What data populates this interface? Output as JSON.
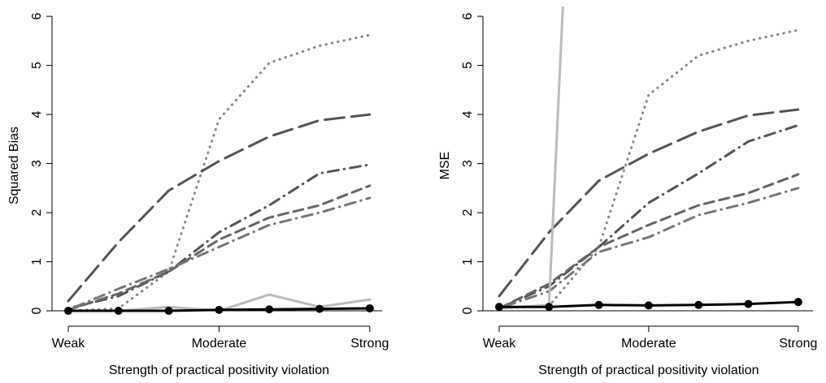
{
  "chart_data": [
    {
      "type": "line",
      "ylabel": "Squared Bias",
      "xlabel": "Strength of practical positivity violation",
      "categories": [
        "Weak",
        null,
        null,
        "Moderate",
        null,
        null,
        "Strong"
      ],
      "ylim": [
        -0.28,
        6.2
      ],
      "yticks": [
        0,
        1,
        2,
        3,
        4,
        5,
        6
      ],
      "hline": 0,
      "series": [
        {
          "color": "#888888",
          "dash": "dot",
          "values": [
            0,
            0.05,
            0.8,
            3.9,
            5.05,
            5.4,
            5.62
          ]
        },
        {
          "color": "#555555",
          "dash": "longdash",
          "values": [
            0.2,
            1.4,
            2.45,
            3.05,
            3.55,
            3.88,
            4.0
          ]
        },
        {
          "color": "#555555",
          "dash": "dotdash",
          "values": [
            0.05,
            0.3,
            0.8,
            1.6,
            2.15,
            2.8,
            2.98
          ]
        },
        {
          "color": "#666666",
          "dash": "dash",
          "values": [
            0.02,
            0.35,
            0.8,
            1.45,
            1.9,
            2.15,
            2.55
          ]
        },
        {
          "color": "#777777",
          "dash": "dotdash",
          "values": [
            0.02,
            0.45,
            0.85,
            1.3,
            1.75,
            2.0,
            2.3
          ]
        },
        {
          "color": "#bbbbbb",
          "dash": "solid",
          "values": [
            0,
            0,
            0.08,
            0,
            0.33,
            0.08,
            0.23
          ]
        },
        {
          "color": "#000000",
          "dash": "solid",
          "markers": true,
          "values": [
            0,
            0,
            0,
            0.02,
            0.03,
            0.04,
            0.05
          ]
        }
      ]
    },
    {
      "type": "line",
      "ylabel": "MSE",
      "xlabel": "Strength of practical positivity violation",
      "categories": [
        "Weak",
        null,
        null,
        "Moderate",
        null,
        null,
        "Strong"
      ],
      "ylim": [
        -0.28,
        6.2
      ],
      "yticks": [
        0,
        1,
        2,
        3,
        4,
        5,
        6
      ],
      "hline": 0,
      "series": [
        {
          "color": "#888888",
          "dash": "dot",
          "values": [
            0.05,
            0.1,
            1.3,
            4.4,
            5.2,
            5.5,
            5.72
          ]
        },
        {
          "color": "#555555",
          "dash": "longdash",
          "values": [
            0.3,
            1.6,
            2.65,
            3.2,
            3.65,
            3.98,
            4.1
          ]
        },
        {
          "color": "#555555",
          "dash": "dotdash",
          "values": [
            0.05,
            0.5,
            1.3,
            2.2,
            2.8,
            3.45,
            3.78
          ]
        },
        {
          "color": "#666666",
          "dash": "dash",
          "values": [
            0.05,
            0.55,
            1.3,
            1.75,
            2.15,
            2.4,
            2.78
          ]
        },
        {
          "color": "#777777",
          "dash": "dotdash",
          "values": [
            0.05,
            0.4,
            1.2,
            1.5,
            1.95,
            2.2,
            2.5
          ]
        },
        {
          "color": "#bbbbbb",
          "dash": "solid",
          "values": [
            0.05,
            0.12,
            22,
            null,
            null,
            null,
            null
          ]
        },
        {
          "color": "#000000",
          "dash": "solid",
          "markers": true,
          "values": [
            0.08,
            0.08,
            0.12,
            0.11,
            0.12,
            0.14,
            0.18
          ]
        }
      ]
    }
  ]
}
